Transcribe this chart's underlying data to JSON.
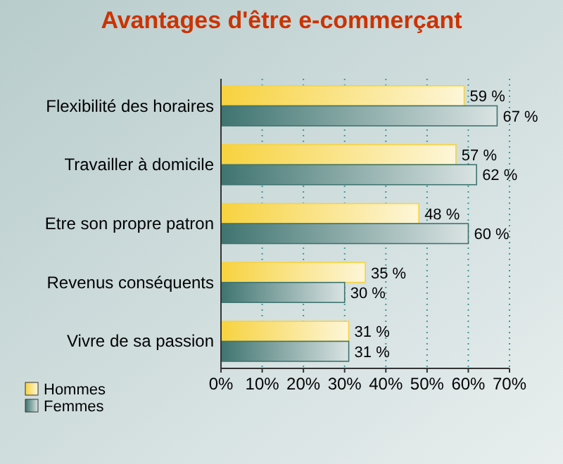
{
  "chart_data": {
    "type": "bar",
    "orientation": "horizontal",
    "title": "Avantages d'être e-commerçant",
    "categories": [
      "Flexibilité des horaires",
      "Travailler à domicile",
      "Etre son propre patron",
      "Revenus conséquents",
      "Vivre de sa passion"
    ],
    "series": [
      {
        "name": "Hommes",
        "color": "#f7d23e",
        "values": [
          59,
          57,
          48,
          35,
          31
        ],
        "value_labels": [
          "59 %",
          "57 %",
          "48 %",
          "35 %",
          "31 %"
        ]
      },
      {
        "name": "Femmes",
        "color": "#3f7470",
        "values": [
          67,
          62,
          60,
          30,
          31
        ],
        "value_labels": [
          "67 %",
          "62 %",
          "60 %",
          "30 %",
          "31 %"
        ]
      }
    ],
    "xlim": [
      0,
      70
    ],
    "xticks": [
      {
        "value": 0,
        "label": "0%"
      },
      {
        "value": 10,
        "label": "10%"
      },
      {
        "value": 20,
        "label": "20%"
      },
      {
        "value": 30,
        "label": "30%"
      },
      {
        "value": 40,
        "label": "40%"
      },
      {
        "value": 50,
        "label": "50%"
      },
      {
        "value": 60,
        "label": "60%"
      },
      {
        "value": 70,
        "label": "70%"
      }
    ],
    "grid": "x",
    "legend": "bottom left"
  }
}
